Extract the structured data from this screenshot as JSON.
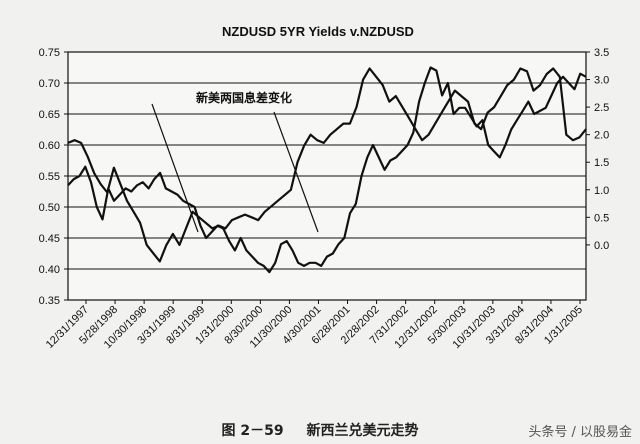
{
  "chart_data": {
    "type": "line",
    "title": "NZDUSD 5YR Yields v.NZDUSD",
    "annotation": "新美两国息差变化",
    "left_axis": {
      "ticks": [
        "0.35",
        "0.40",
        "0.45",
        "0.50",
        "0.55",
        "0.60",
        "0.65",
        "0.70",
        "0.75"
      ],
      "ylim": [
        0.35,
        0.75
      ]
    },
    "right_axis": {
      "ticks": [
        "0.0",
        "0.5",
        "1.0",
        "1.5",
        "2.0",
        "2.5",
        "3.0",
        "3.5"
      ],
      "ylim": [
        -1.0,
        3.5
      ]
    },
    "grid": "horizontal",
    "x_tick_labels": [
      "12/31/1997",
      "5/28/1998",
      "10/30/1998",
      "3/31/1999",
      "8/31/1999",
      "1/31/2000",
      "8/30/2000",
      "11/30/2000",
      "4/30/2001",
      "6/28/2001",
      "2/28/2002",
      "7/31/2002",
      "12/31/2002",
      "5/30/2003",
      "10/31/2003",
      "3/31/2004",
      "8/31/2004",
      "1/31/2005"
    ],
    "series": [
      {
        "axis": "left",
        "values": [
          0.535,
          0.545,
          0.55,
          0.565,
          0.54,
          0.5,
          0.48,
          0.53,
          0.51,
          0.52,
          0.53,
          0.525,
          0.535,
          0.54,
          0.53,
          0.545,
          0.555,
          0.53,
          0.525,
          0.52,
          0.51,
          0.505,
          0.5,
          0.47,
          0.45,
          0.46,
          0.47,
          0.465,
          0.445,
          0.43,
          0.45,
          0.43,
          0.42,
          0.41,
          0.405,
          0.395,
          0.41,
          0.44,
          0.445,
          0.43,
          0.41,
          0.405,
          0.41,
          0.41,
          0.405,
          0.42,
          0.425,
          0.44,
          0.45,
          0.49,
          0.505,
          0.55,
          0.58,
          0.6,
          0.58,
          0.56,
          0.575,
          0.58,
          0.59,
          0.6,
          0.62,
          0.67,
          0.7,
          0.725,
          0.72,
          0.68,
          0.7,
          0.65,
          0.66,
          0.66,
          0.645,
          0.63,
          0.64,
          0.6,
          0.59,
          0.58,
          0.6,
          0.625,
          0.64,
          0.655,
          0.67,
          0.65,
          0.655,
          0.66,
          0.68,
          0.7,
          0.71,
          0.7,
          0.69,
          0.715,
          0.71
        ]
      },
      {
        "axis": "right",
        "values": [
          1.85,
          1.9,
          1.85,
          1.6,
          1.3,
          1.1,
          0.95,
          1.4,
          1.1,
          0.8,
          0.6,
          0.4,
          0.0,
          -0.15,
          -0.3,
          0.0,
          0.2,
          0.0,
          0.3,
          0.6,
          0.5,
          0.4,
          0.3,
          0.35,
          0.3,
          0.45,
          0.5,
          0.55,
          0.5,
          0.45,
          0.6,
          0.7,
          0.8,
          0.9,
          1.0,
          1.5,
          1.8,
          2.0,
          1.9,
          1.85,
          2.0,
          2.1,
          2.2,
          2.2,
          2.5,
          3.0,
          3.2,
          3.05,
          2.9,
          2.6,
          2.7,
          2.5,
          2.3,
          2.1,
          1.9,
          2.0,
          2.2,
          2.4,
          2.6,
          2.8,
          2.7,
          2.6,
          2.2,
          2.1,
          2.4,
          2.5,
          2.7,
          2.9,
          3.0,
          3.2,
          3.15,
          2.8,
          2.9,
          3.1,
          3.2,
          3.05,
          2.0,
          1.9,
          1.95,
          2.1
        ]
      }
    ]
  },
  "caption": {
    "number": "图 2－59",
    "text": "新西兰兑美元走势"
  },
  "watermark": "头条号 / 以股易金"
}
